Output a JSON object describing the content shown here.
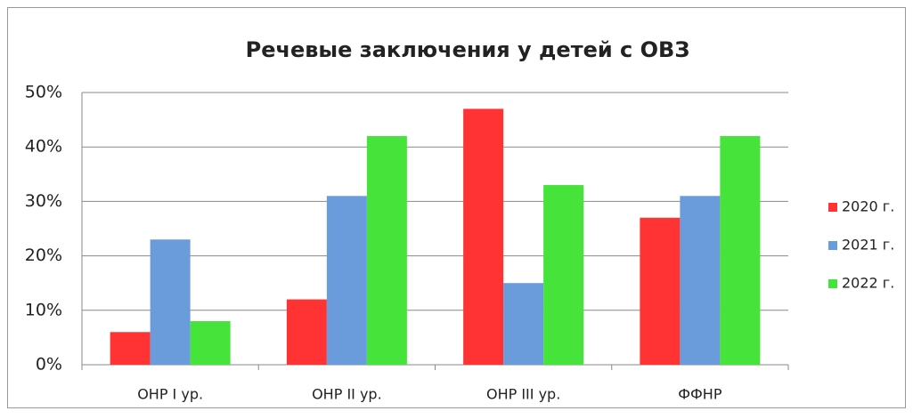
{
  "chart_data": {
    "type": "bar",
    "title": "Речевые заключения  у детей с ОВЗ",
    "categories": [
      "ОНР I ур.",
      "ОНР II ур.",
      "ОНР III ур.",
      "ФФНР"
    ],
    "series": [
      {
        "name": "2020 г.",
        "color": "#ff3333",
        "values": [
          6,
          12,
          47,
          27
        ]
      },
      {
        "name": "2021 г.",
        "color": "#6a9bdb",
        "values": [
          23,
          31,
          15,
          31
        ]
      },
      {
        "name": "2022 г.",
        "color": "#46e33a",
        "values": [
          8,
          42,
          33,
          42
        ]
      }
    ],
    "ylim": [
      0,
      50
    ],
    "yticks": [
      {
        "value": 0,
        "label": "0%"
      },
      {
        "value": 10,
        "label": "10%"
      },
      {
        "value": 20,
        "label": "20%"
      },
      {
        "value": 30,
        "label": "30%"
      },
      {
        "value": 40,
        "label": "40%"
      },
      {
        "value": 50,
        "label": "50%"
      }
    ],
    "grid": true,
    "legend": "right"
  }
}
